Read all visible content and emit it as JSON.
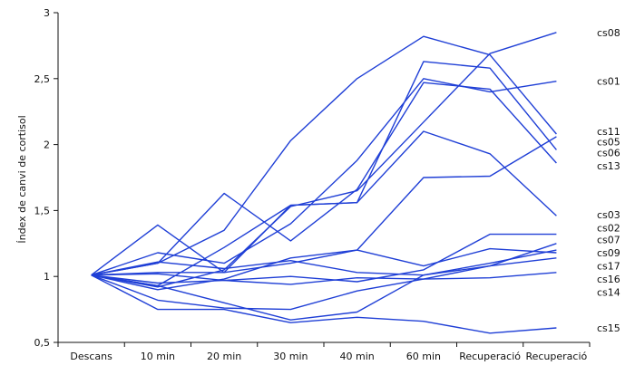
{
  "chart_data": {
    "type": "line",
    "title": "",
    "xlabel": "",
    "ylabel": "Índex de canvi de cortisol",
    "categories": [
      "Descans",
      "10 min",
      "20 min",
      "30 min",
      "40 min",
      "60 min",
      "Recuperació",
      "Recuperació"
    ],
    "ylim": [
      0.5,
      3
    ],
    "yticks": [
      0.5,
      1,
      1.5,
      2,
      2.5,
      3
    ],
    "ytick_labels": [
      "0,5",
      "1",
      "1,5",
      "2",
      "2,5",
      "3"
    ],
    "grid": false,
    "legend": "right-end labels",
    "color": "#1f3fd6",
    "series": [
      {
        "name": "cs08",
        "values": [
          1.01,
          1.1,
          1.35,
          2.03,
          2.5,
          2.82,
          2.68,
          2.08
        ]
      },
      {
        "name": "cs01",
        "values": [
          1.01,
          0.92,
          1.05,
          1.53,
          1.65,
          2.17,
          2.69,
          2.85
        ]
      },
      {
        "name": "cs11",
        "values": [
          1.01,
          1.18,
          1.1,
          1.4,
          1.88,
          2.5,
          2.4,
          2.48
        ]
      },
      {
        "name": "cs05",
        "values": [
          1.01,
          1.39,
          1.03,
          1.54,
          1.56,
          2.63,
          2.58,
          1.96
        ]
      },
      {
        "name": "cs06",
        "values": [
          1.01,
          1.1,
          1.63,
          1.27,
          1.66,
          2.47,
          2.42,
          1.86
        ]
      },
      {
        "name": "cs13",
        "values": [
          1.01,
          0.93,
          1.22,
          1.54,
          1.56,
          2.1,
          1.93,
          1.46
        ]
      },
      {
        "name": "cs03",
        "values": [
          1.01,
          0.9,
          0.98,
          1.14,
          1.2,
          1.75,
          1.76,
          2.06
        ]
      },
      {
        "name": "cs02",
        "values": [
          1.01,
          1.03,
          1.03,
          1.1,
          1.2,
          1.08,
          1.21,
          1.18
        ]
      },
      {
        "name": "cs07",
        "values": [
          1.01,
          0.95,
          0.97,
          1.0,
          0.96,
          1.05,
          1.32,
          1.32
        ]
      },
      {
        "name": "cs09",
        "values": [
          1.01,
          1.11,
          1.06,
          1.12,
          1.03,
          1.01,
          1.08,
          1.25
        ]
      },
      {
        "name": "cs17",
        "values": [
          1.01,
          0.82,
          0.76,
          0.75,
          0.89,
          0.98,
          1.08,
          1.14
        ]
      },
      {
        "name": "cs16",
        "values": [
          1.01,
          1.02,
          0.97,
          0.94,
          0.99,
          0.98,
          0.99,
          1.03
        ]
      },
      {
        "name": "cs14",
        "values": [
          1.01,
          0.93,
          0.8,
          0.67,
          0.73,
          1.01,
          1.1,
          1.2
        ]
      },
      {
        "name": "cs15",
        "values": [
          1.01,
          0.75,
          0.75,
          0.65,
          0.69,
          0.66,
          0.57,
          0.61
        ]
      }
    ],
    "series_label_order": [
      {
        "name": "cs08",
        "y": 2.85
      },
      {
        "name": "cs01",
        "y": 2.48
      },
      {
        "name": "cs11",
        "y": 2.1
      },
      {
        "name": "cs05",
        "y": 2.02
      },
      {
        "name": "cs06",
        "y": 1.94
      },
      {
        "name": "cs13",
        "y": 1.84
      },
      {
        "name": "cs03",
        "y": 1.47
      },
      {
        "name": "cs02",
        "y": 1.37
      },
      {
        "name": "cs07",
        "y": 1.28
      },
      {
        "name": "cs09",
        "y": 1.18
      },
      {
        "name": "cs17",
        "y": 1.08
      },
      {
        "name": "cs16",
        "y": 0.98
      },
      {
        "name": "cs14",
        "y": 0.88
      },
      {
        "name": "cs15",
        "y": 0.61
      }
    ]
  }
}
